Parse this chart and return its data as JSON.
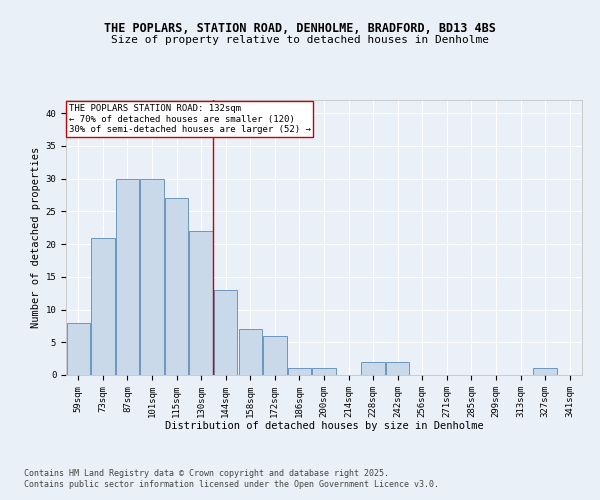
{
  "title_line1": "THE POPLARS, STATION ROAD, DENHOLME, BRADFORD, BD13 4BS",
  "title_line2": "Size of property relative to detached houses in Denholme",
  "xlabel": "Distribution of detached houses by size in Denholme",
  "ylabel": "Number of detached properties",
  "bar_labels": [
    "59sqm",
    "73sqm",
    "87sqm",
    "101sqm",
    "115sqm",
    "130sqm",
    "144sqm",
    "158sqm",
    "172sqm",
    "186sqm",
    "200sqm",
    "214sqm",
    "228sqm",
    "242sqm",
    "256sqm",
    "271sqm",
    "285sqm",
    "299sqm",
    "313sqm",
    "327sqm",
    "341sqm"
  ],
  "bar_values": [
    8,
    21,
    30,
    30,
    27,
    22,
    13,
    7,
    6,
    1,
    1,
    0,
    2,
    2,
    0,
    0,
    0,
    0,
    0,
    1,
    0
  ],
  "bar_color": "#c9d9ea",
  "bar_edge_color": "#5a8ab5",
  "vline_x": 5.5,
  "vline_color": "#cc0000",
  "annotation_text": "THE POPLARS STATION ROAD: 132sqm\n← 70% of detached houses are smaller (120)\n30% of semi-detached houses are larger (52) →",
  "annotation_box_color": "#ffffff",
  "annotation_box_edge": "#cc0000",
  "ylim": [
    0,
    42
  ],
  "yticks": [
    0,
    5,
    10,
    15,
    20,
    25,
    30,
    35,
    40
  ],
  "bg_color": "#eaf0f8",
  "plot_bg_color": "#eaf0f8",
  "grid_color": "#ffffff",
  "footer_line1": "Contains HM Land Registry data © Crown copyright and database right 2025.",
  "footer_line2": "Contains public sector information licensed under the Open Government Licence v3.0.",
  "title_fontsize": 8.5,
  "subtitle_fontsize": 8,
  "axis_label_fontsize": 7.5,
  "tick_fontsize": 6.5,
  "annotation_fontsize": 6.5,
  "footer_fontsize": 6
}
